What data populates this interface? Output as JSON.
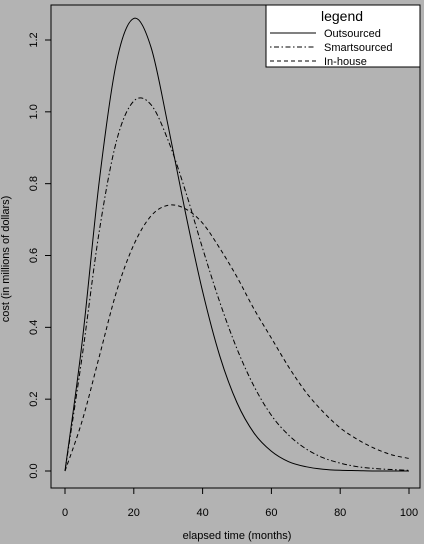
{
  "chart_data": {
    "type": "line",
    "title": "",
    "xlabel": "elapsed time (months)",
    "ylabel": "cost (in millions of dollars)",
    "xlim": [
      0,
      100
    ],
    "ylim": [
      0,
      1.3
    ],
    "x_ticks": [
      0,
      20,
      40,
      60,
      80,
      100
    ],
    "x_tick_labels": [
      "0",
      "20",
      "40",
      "60",
      "80",
      "100"
    ],
    "y_ticks": [
      0,
      0.2,
      0.4,
      0.6,
      0.8,
      1.0,
      1.2
    ],
    "y_tick_labels": [
      "0.0",
      "0.2",
      "0.4",
      "0.6",
      "0.8",
      "1.0",
      "1.2"
    ],
    "grid": false,
    "legend": {
      "title": "legend",
      "position": "top-right"
    },
    "x": [
      0,
      5,
      10,
      15,
      20,
      25,
      30,
      35,
      40,
      45,
      50,
      55,
      60,
      65,
      70,
      75,
      80,
      85,
      90,
      95,
      100
    ],
    "series": [
      {
        "name": "Outsourced",
        "dash": "solid",
        "values": [
          0.0,
          0.36,
          0.81,
          1.14,
          1.26,
          1.18,
          0.96,
          0.72,
          0.5,
          0.32,
          0.19,
          0.105,
          0.055,
          0.026,
          0.012,
          0.005,
          0.002,
          0.001,
          0.0,
          0.0,
          0.0
        ]
      },
      {
        "name": "Smartsourced",
        "dash": "dotdash",
        "values": [
          0.0,
          0.32,
          0.67,
          0.92,
          1.03,
          1.02,
          0.92,
          0.78,
          0.62,
          0.47,
          0.34,
          0.235,
          0.155,
          0.1,
          0.062,
          0.037,
          0.022,
          0.012,
          0.007,
          0.004,
          0.002
        ]
      },
      {
        "name": "In-house",
        "dash": "dashed",
        "values": [
          0.0,
          0.14,
          0.32,
          0.5,
          0.63,
          0.71,
          0.74,
          0.73,
          0.69,
          0.62,
          0.54,
          0.45,
          0.37,
          0.29,
          0.22,
          0.165,
          0.12,
          0.088,
          0.063,
          0.045,
          0.035
        ]
      }
    ]
  }
}
